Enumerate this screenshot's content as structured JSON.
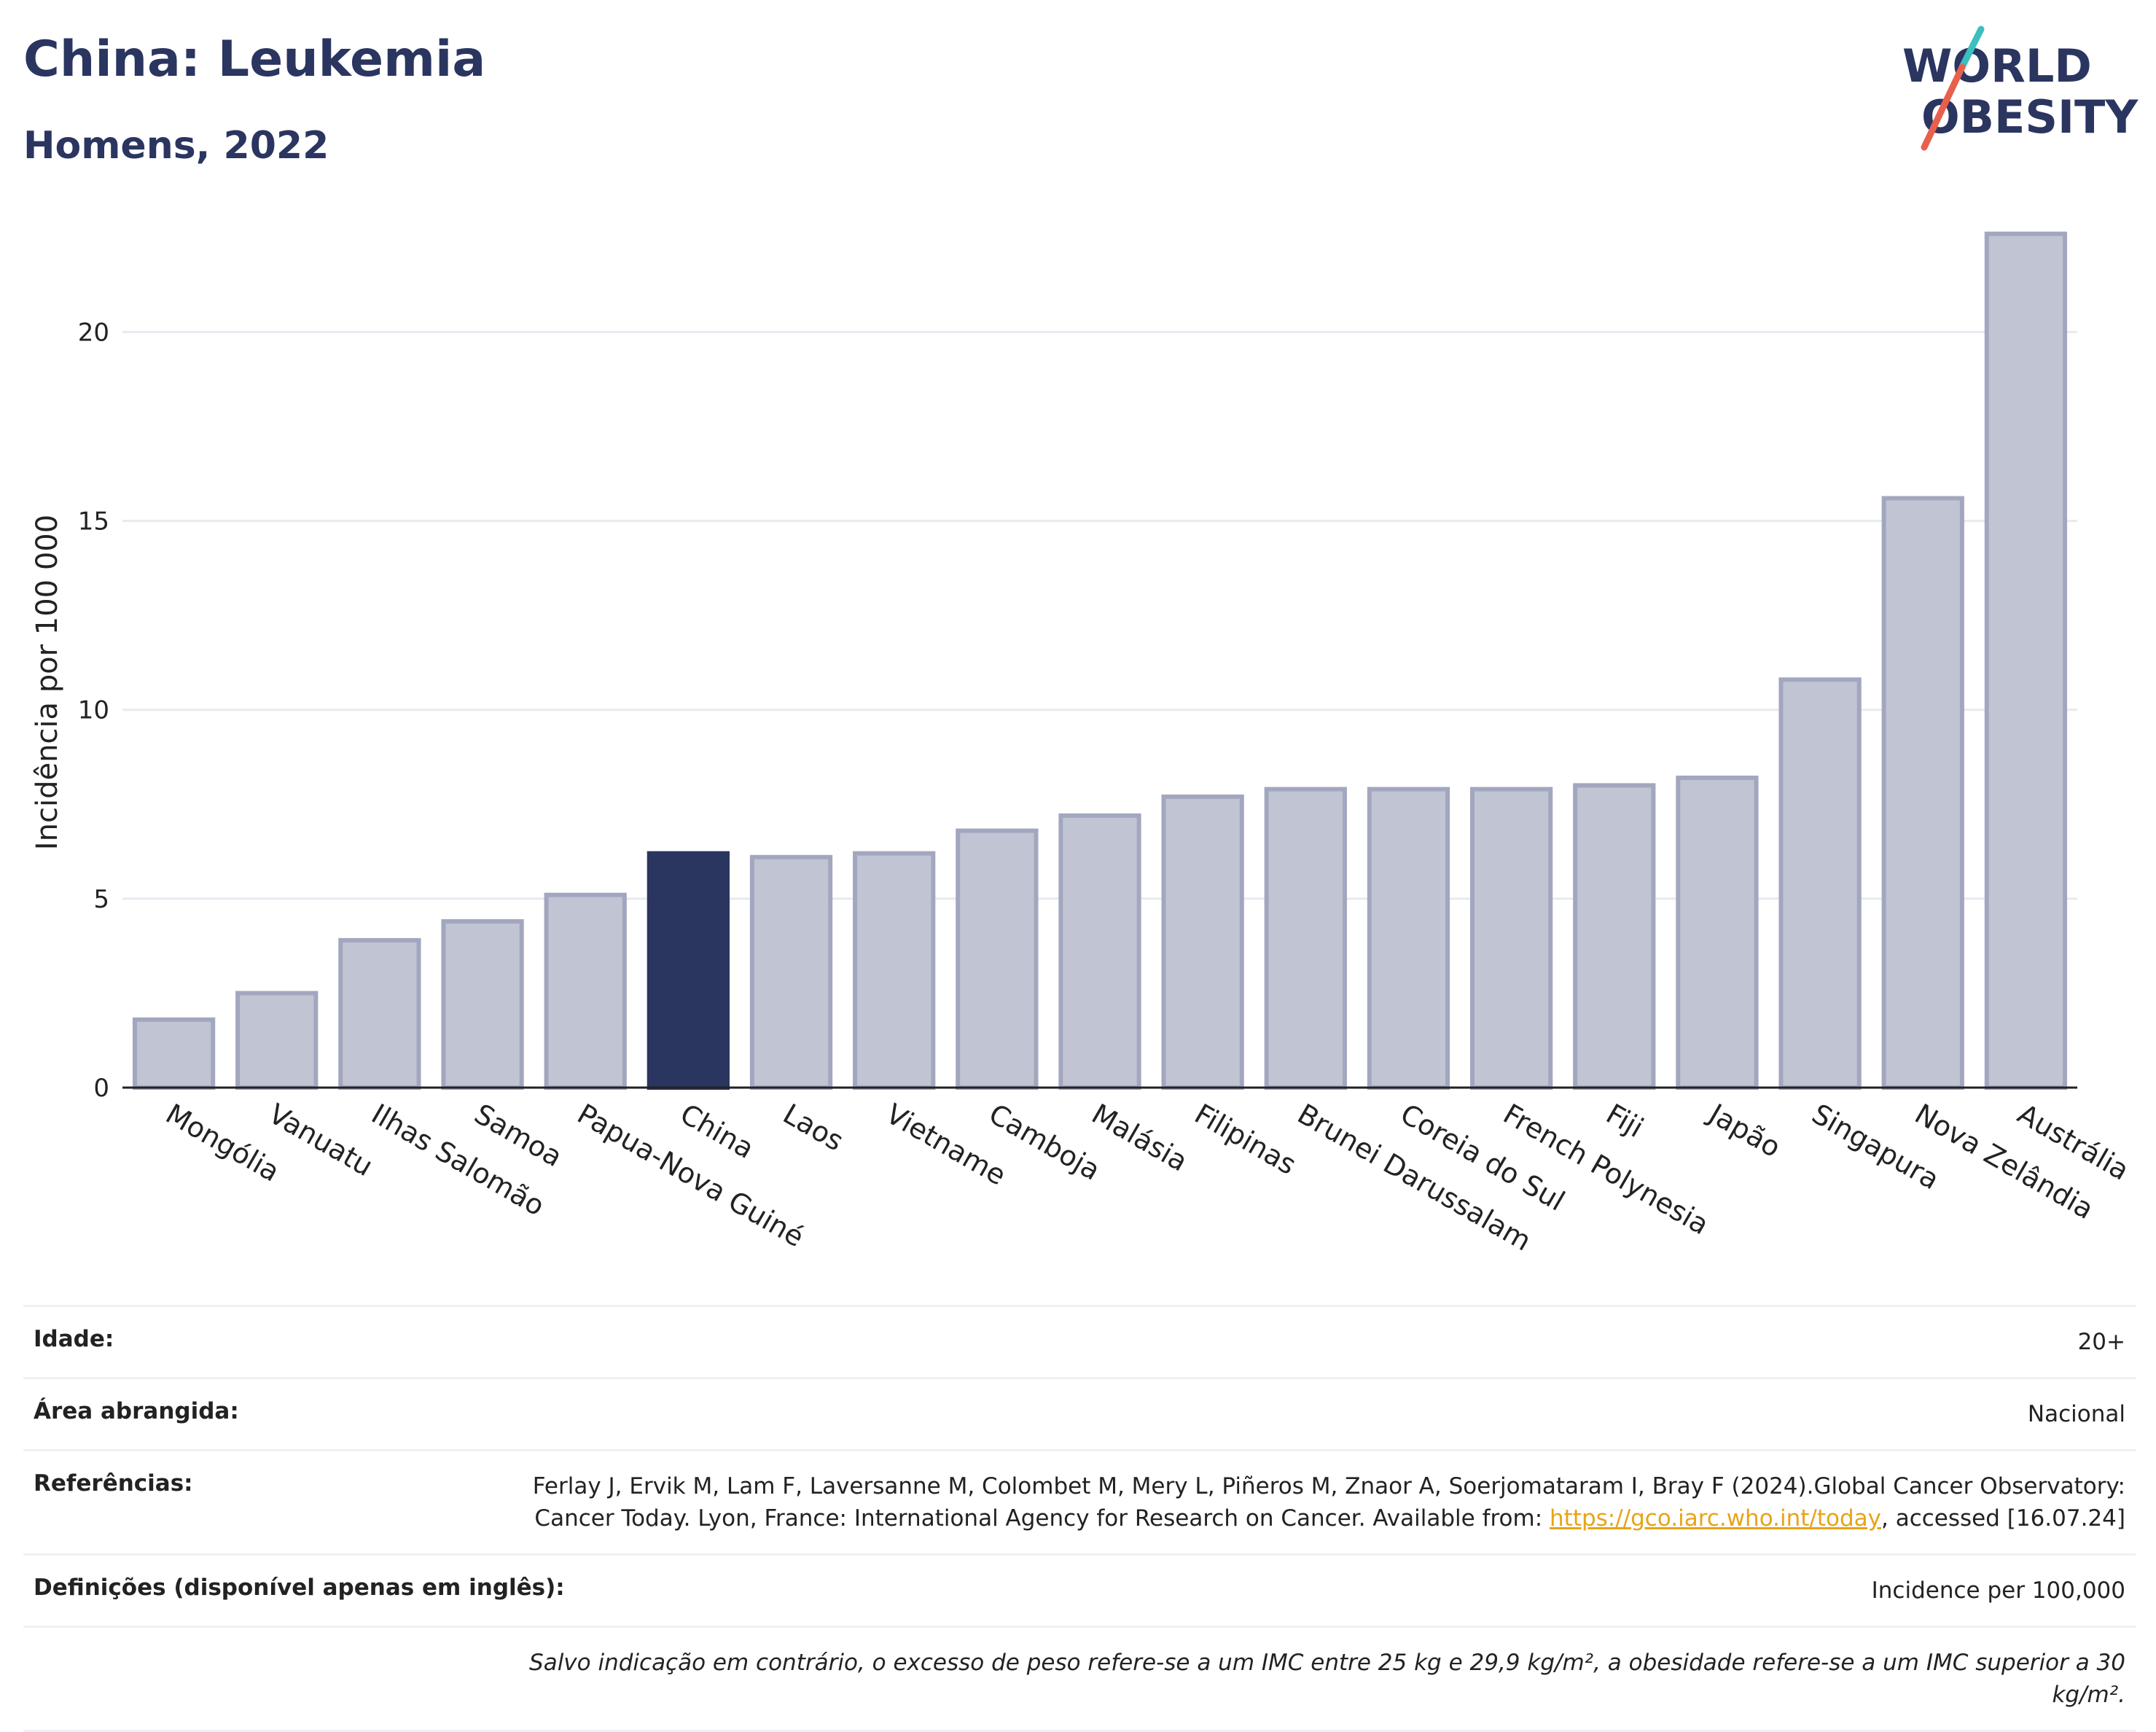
{
  "header": {
    "title": "China: Leukemia",
    "subtitle": "Homens, 2022"
  },
  "logo": {
    "line1": "WORLD",
    "line2": "OBESITY",
    "text_color": "#2a3560",
    "slash_colors": [
      "#3bbfbf",
      "#e8604c"
    ]
  },
  "colors": {
    "bar_default": "#c1c4d2",
    "bar_border": "#a2a7bf",
    "bar_highlight": "#2a3560",
    "grid": "#e8eaf1",
    "axis": "#222222"
  },
  "chart_data": {
    "type": "bar",
    "title": "China: Leukemia",
    "subtitle": "Homens, 2022",
    "ylabel": "Incidência por 100 000",
    "xlabel": "",
    "ylim": [
      0,
      23
    ],
    "yticks": [
      0,
      5,
      10,
      15,
      20
    ],
    "grid": true,
    "highlight": "China",
    "categories": [
      "Mongólia",
      "Vanuatu",
      "Ilhas Salomão",
      "Samoa",
      "Papua-Nova Guiné",
      "China",
      "Laos",
      "Vietname",
      "Camboja",
      "Malásia",
      "Filipinas",
      "Brunei Darussalam",
      "Coreia do Sul",
      "French Polynesia",
      "Fiji",
      "Japão",
      "Singapura",
      "Nova Zelândia",
      "Austrália"
    ],
    "values": [
      1.8,
      2.5,
      3.9,
      4.4,
      5.1,
      6.2,
      6.1,
      6.2,
      6.8,
      7.2,
      7.7,
      7.9,
      7.9,
      7.9,
      8.0,
      8.2,
      10.8,
      15.6,
      22.6
    ]
  },
  "table": {
    "rows": [
      {
        "label": "Idade:",
        "value": "20+"
      },
      {
        "label": "Área abrangida:",
        "value": "Nacional"
      },
      {
        "label": "Referências:",
        "value_before": "Ferlay J, Ervik M, Lam F, Laversanne M, Colombet M, Mery L, Piñeros M, Znaor A, Soerjomataram I, Bray F (2024).Global Cancer Observatory: Cancer Today. Lyon, France: International Agency for Research on Cancer. Available from: ",
        "link": "https://gco.iarc.who.int/today",
        "value_after": ", accessed [16.07.24]"
      },
      {
        "label": "Definições (disponível apenas em inglês):",
        "value": "Incidence per 100,000"
      }
    ],
    "note": "Salvo indicação em contrário, o excesso de peso refere-se a um IMC entre 25 kg e 29,9 kg/m², a obesidade refere-se a um IMC superior a 30 kg/m²."
  }
}
